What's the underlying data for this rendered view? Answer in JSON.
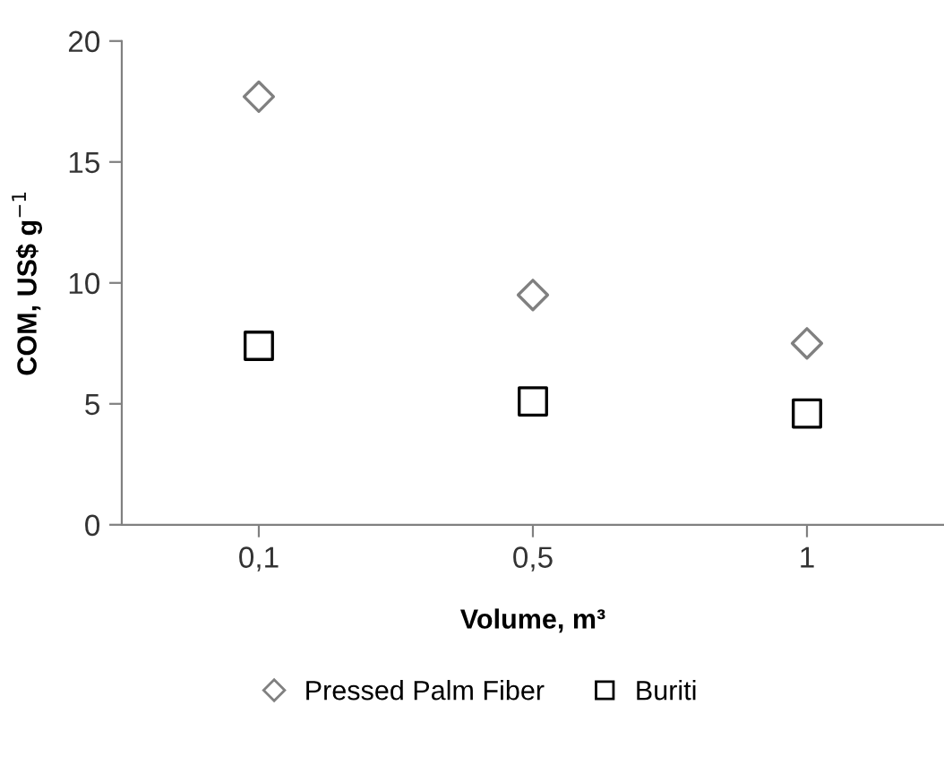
{
  "chart_data": {
    "type": "scatter",
    "xlabel": "Volume, m³",
    "ylabel": "COM, US$ g$^{−1}$",
    "categories": [
      "0,1",
      "0,5",
      "1"
    ],
    "series": [
      {
        "name": "Pressed Palm Fiber",
        "color": "#808080",
        "marker": "diamond",
        "values": [
          17.7,
          9.5,
          7.5
        ]
      },
      {
        "name": "Buriti",
        "color": "#000000",
        "marker": "square",
        "values": [
          7.4,
          5.1,
          4.6
        ]
      }
    ],
    "ylim": [
      0,
      20
    ],
    "yticks": [
      0,
      5,
      10,
      15,
      20
    ],
    "grid": false,
    "legend": "bottom"
  }
}
